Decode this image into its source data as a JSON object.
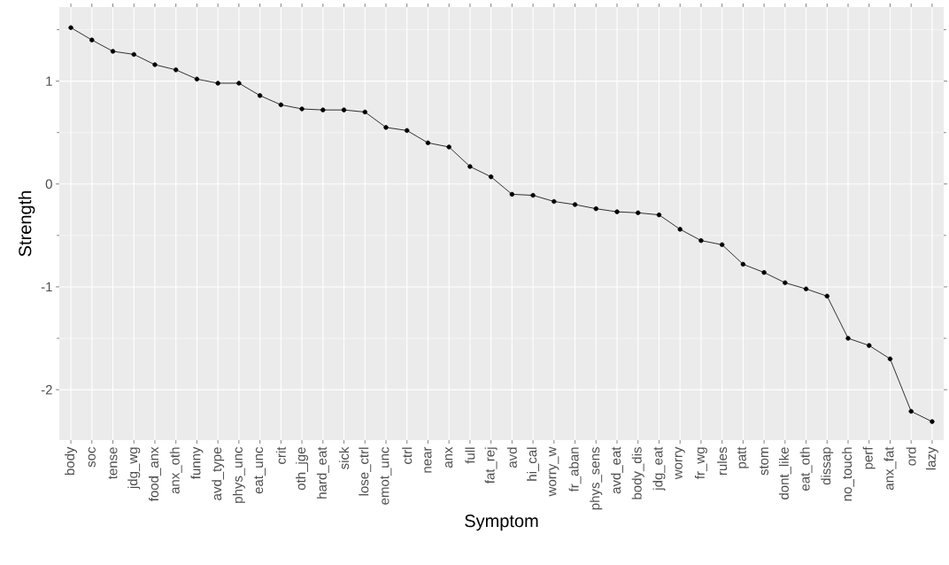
{
  "chart_data": {
    "type": "line",
    "xlabel": "Symptom",
    "ylabel": "Strength",
    "categories": [
      "body",
      "soc",
      "tense",
      "jdg_wg",
      "food_anx",
      "anx_oth",
      "funny",
      "avd_type",
      "phys_unc",
      "eat_unc",
      "crit",
      "oth_jge",
      "hard_eat",
      "sick",
      "lose_ctrl",
      "emot_unc",
      "ctrl",
      "near",
      "anx",
      "full",
      "fat_rej",
      "avd",
      "hi_cal",
      "worry_w",
      "fr_aban",
      "phys_sens",
      "avd_eat",
      "body_dis",
      "jdg_eat",
      "worry",
      "fr_wg",
      "rules",
      "patt",
      "stom",
      "dont_like",
      "eat_oth",
      "dissap",
      "no_touch",
      "perf",
      "anx_fat",
      "ord",
      "lazy"
    ],
    "series": [
      {
        "color": "#000000",
        "values": [
          1.52,
          1.4,
          1.29,
          1.26,
          1.16,
          1.11,
          1.02,
          0.98,
          0.98,
          0.86,
          0.77,
          0.73,
          0.72,
          0.72,
          0.7,
          0.55,
          0.52,
          0.4,
          0.36,
          0.17,
          0.07,
          -0.1,
          -0.11,
          -0.17,
          -0.2,
          -0.24,
          -0.27,
          -0.28,
          -0.3,
          -0.44,
          -0.55,
          -0.59,
          -0.78,
          -0.86,
          -0.96,
          -1.02,
          -1.09,
          -1.5,
          -1.57,
          -1.7,
          -2.21,
          -2.31
        ]
      }
    ],
    "ylim": [
      -2.49,
      1.72
    ],
    "yticks": [
      -2,
      -1,
      0,
      1
    ],
    "grid": true,
    "marker": "circle",
    "line_style": "solid"
  }
}
